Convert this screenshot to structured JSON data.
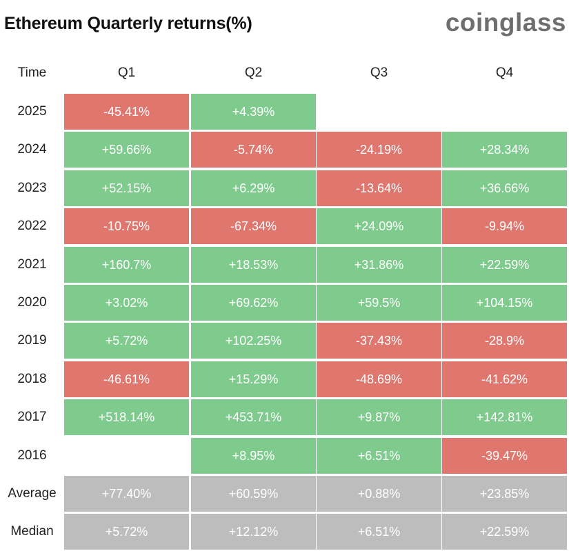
{
  "title": "Ethereum Quarterly returns(%)",
  "brand": "coinglass",
  "colors": {
    "positive": "#7fcb8e",
    "negative": "#e0776f",
    "summary": "#bdbdbd",
    "empty": "#ffffff"
  },
  "chart_data": {
    "type": "table",
    "columns": [
      "Time",
      "Q1",
      "Q2",
      "Q3",
      "Q4"
    ],
    "rows": [
      {
        "label": "2025",
        "values": [
          "-45.41%",
          "+4.39%",
          "",
          ""
        ],
        "kind": "year"
      },
      {
        "label": "2024",
        "values": [
          "+59.66%",
          "-5.74%",
          "-24.19%",
          "+28.34%"
        ],
        "kind": "year"
      },
      {
        "label": "2023",
        "values": [
          "+52.15%",
          "+6.29%",
          "-13.64%",
          "+36.66%"
        ],
        "kind": "year"
      },
      {
        "label": "2022",
        "values": [
          "-10.75%",
          "-67.34%",
          "+24.09%",
          "-9.94%"
        ],
        "kind": "year"
      },
      {
        "label": "2021",
        "values": [
          "+160.7%",
          "+18.53%",
          "+31.86%",
          "+22.59%"
        ],
        "kind": "year"
      },
      {
        "label": "2020",
        "values": [
          "+3.02%",
          "+69.62%",
          "+59.5%",
          "+104.15%"
        ],
        "kind": "year"
      },
      {
        "label": "2019",
        "values": [
          "+5.72%",
          "+102.25%",
          "-37.43%",
          "-28.9%"
        ],
        "kind": "year"
      },
      {
        "label": "2018",
        "values": [
          "-46.61%",
          "+15.29%",
          "-48.69%",
          "-41.62%"
        ],
        "kind": "year"
      },
      {
        "label": "2017",
        "values": [
          "+518.14%",
          "+453.71%",
          "+9.87%",
          "+142.81%"
        ],
        "kind": "year"
      },
      {
        "label": "2016",
        "values": [
          "",
          "+8.95%",
          "+6.51%",
          "-39.47%"
        ],
        "kind": "year"
      },
      {
        "label": "Average",
        "values": [
          "+77.40%",
          "+60.59%",
          "+0.88%",
          "+23.85%"
        ],
        "kind": "summary"
      },
      {
        "label": "Median",
        "values": [
          "+5.72%",
          "+12.12%",
          "+6.51%",
          "+22.59%"
        ],
        "kind": "summary"
      }
    ]
  }
}
